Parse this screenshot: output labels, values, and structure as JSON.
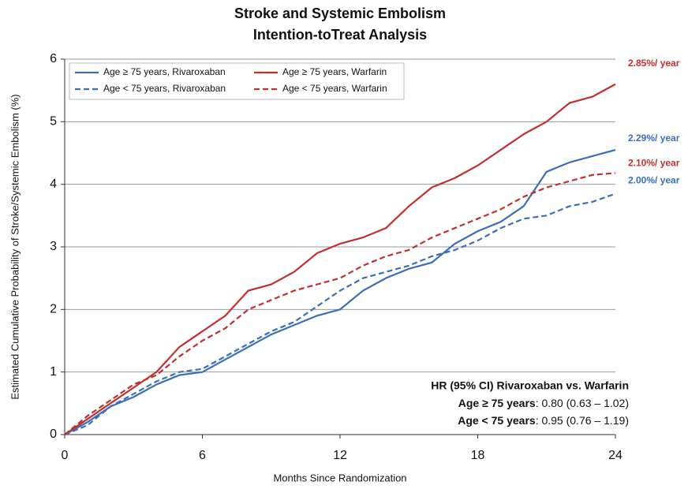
{
  "chart_data": {
    "type": "line",
    "title": "Stroke and Systemic Embolism",
    "subtitle": "Intention-toTreat Analysis",
    "x_label": "Months Since Randomization",
    "y_label": "Estimated Cumulative Probability of Stroke/Systemic Embolism (%)",
    "x": [
      0,
      1,
      2,
      3,
      4,
      5,
      6,
      7,
      8,
      9,
      10,
      11,
      12,
      13,
      14,
      15,
      16,
      17,
      18,
      19,
      20,
      21,
      22,
      23,
      24
    ],
    "series": [
      {
        "name": "Age ≥ 75 years, Rivaroxaban",
        "color": "#3a6fb8",
        "dash": false,
        "values": [
          0,
          0.2,
          0.45,
          0.6,
          0.8,
          0.95,
          1.0,
          1.2,
          1.4,
          1.6,
          1.75,
          1.9,
          2.0,
          2.3,
          2.5,
          2.65,
          2.75,
          3.05,
          3.25,
          3.4,
          3.65,
          4.2,
          4.35,
          4.45,
          4.55
        ]
      },
      {
        "name": "Age ≥ 75 years, Warfarin",
        "color": "#c0302e",
        "dash": false,
        "values": [
          0,
          0.25,
          0.5,
          0.75,
          1.0,
          1.4,
          1.65,
          1.9,
          2.3,
          2.4,
          2.6,
          2.9,
          3.05,
          3.15,
          3.3,
          3.65,
          3.95,
          4.1,
          4.3,
          4.55,
          4.8,
          5.0,
          5.3,
          5.4,
          5.6
        ]
      },
      {
        "name": "Age < 75 years, Rivaroxaban",
        "color": "#3a6fb8",
        "dash": true,
        "values": [
          0,
          0.15,
          0.45,
          0.65,
          0.85,
          1.0,
          1.05,
          1.25,
          1.45,
          1.65,
          1.8,
          2.05,
          2.3,
          2.5,
          2.6,
          2.7,
          2.85,
          2.95,
          3.1,
          3.3,
          3.45,
          3.5,
          3.65,
          3.72,
          3.85
        ]
      },
      {
        "name": "Age < 75 years, Warfarin",
        "color": "#c0302e",
        "dash": true,
        "values": [
          0,
          0.3,
          0.55,
          0.8,
          0.95,
          1.25,
          1.5,
          1.7,
          2.0,
          2.15,
          2.3,
          2.4,
          2.5,
          2.7,
          2.85,
          2.95,
          3.15,
          3.3,
          3.45,
          3.6,
          3.8,
          3.95,
          4.05,
          4.15,
          4.18
        ]
      }
    ],
    "end_labels": [
      {
        "text": "2.29%/ year",
        "series": 0
      },
      {
        "text": "2.85%/ year",
        "series": 1
      },
      {
        "text": "2.00%/ year",
        "series": 2
      },
      {
        "text": "2.10%/ year",
        "series": 3
      }
    ],
    "hr_title": "HR (95% CI) Rivaroxaban vs. Warfarin",
    "hr_rows": [
      {
        "bold": "Age ≥ 75 years",
        "text": ": 0.80 (0.63 – 1.02)"
      },
      {
        "bold": "Age < 75 years",
        "text": ": 0.95 (0.76 – 1.19)"
      }
    ],
    "xlim": [
      0,
      24
    ],
    "xticks": [
      0,
      6,
      12,
      18,
      24
    ],
    "ylim": [
      0,
      6
    ],
    "yticks": [
      0,
      1,
      2,
      3,
      4,
      5,
      6
    ],
    "grid": true,
    "legend": "upper left"
  }
}
